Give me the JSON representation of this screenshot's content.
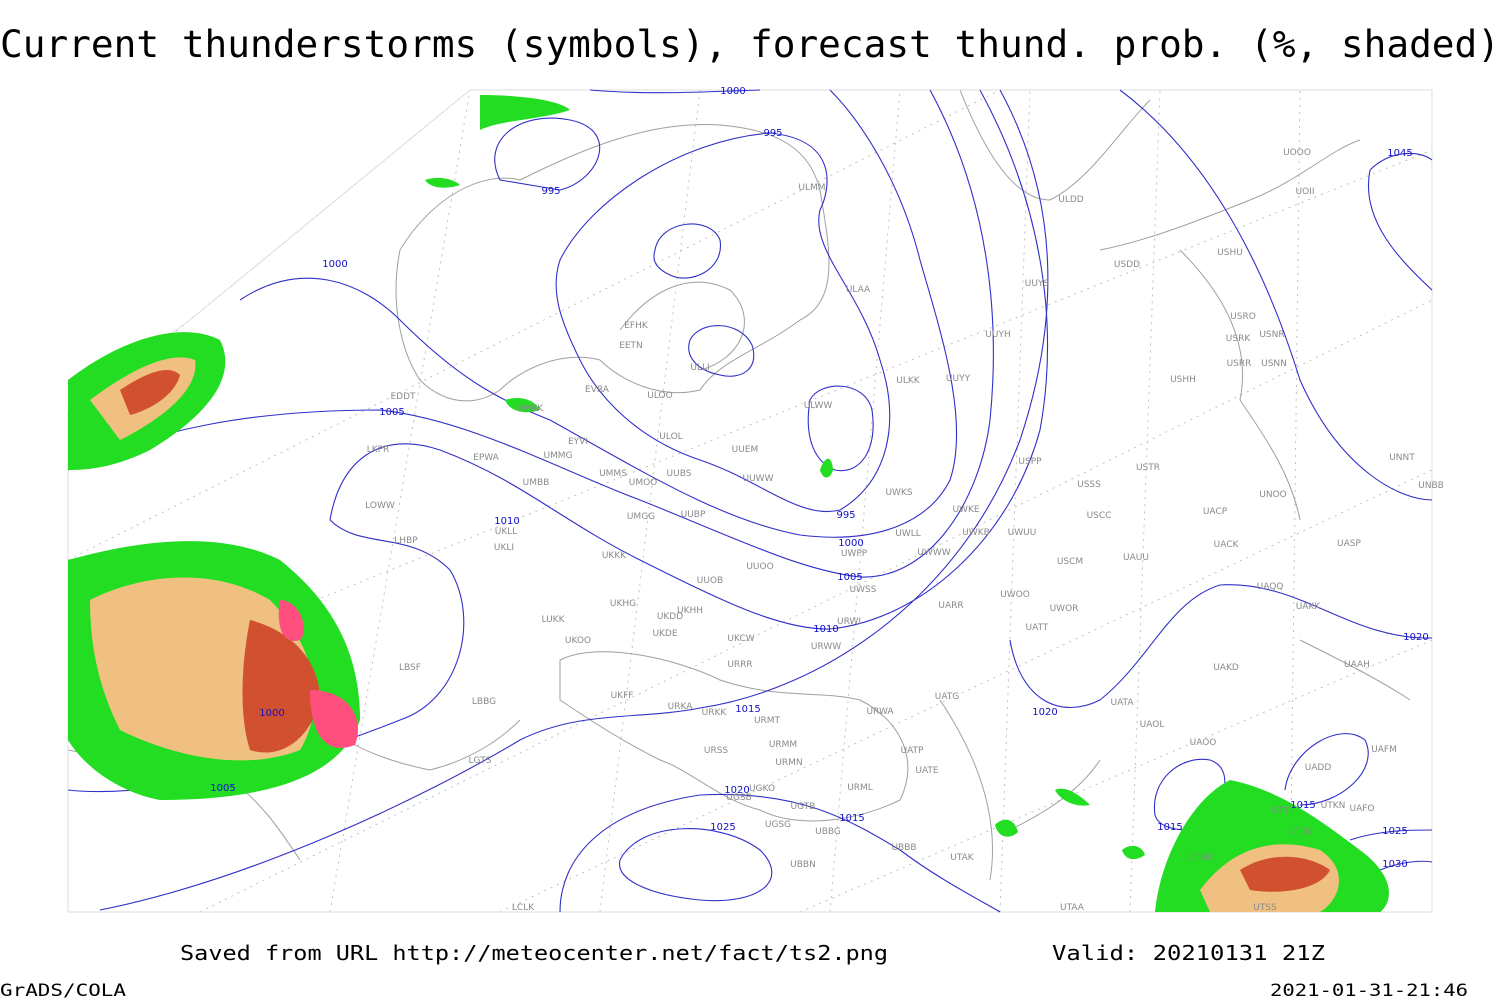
{
  "title": "Current thunderstorms (symbols), forecast thund. prob. (%, shaded)",
  "footer": {
    "source": "Saved from URL http://meteocenter.net/fact/ts2.png",
    "valid": "Valid: 20210131 21Z",
    "software": "GrADS/COLA",
    "timestamp": "2021-01-31-21:46"
  },
  "isobar_labels": [
    1000,
    995,
    995,
    1000,
    1005,
    1010,
    995,
    1000,
    1005,
    1010,
    1015,
    1020,
    1025,
    1015,
    1000,
    1005,
    1020,
    1015,
    1015,
    1020,
    1025,
    1030,
    1045
  ],
  "stations": [
    "ULMM",
    "ULDD",
    "UUYS",
    "USDD",
    "USHU",
    "UOII",
    "UOOO",
    "ULAA",
    "EFHK",
    "EETN",
    "ULLI",
    "UUYH",
    "USRO",
    "USRK",
    "USNR",
    "USRR",
    "USNN",
    "ULKK",
    "UUYY",
    "USHH",
    "EVRA",
    "ULOO",
    "UMKK",
    "ULWW",
    "EYVI",
    "ULOL",
    "UUEM",
    "EDDT",
    "LKPR",
    "EPWA",
    "UMMG",
    "UMMS",
    "UMOO",
    "UUBS",
    "UUWW",
    "UWKS",
    "USPP",
    "USSS",
    "USTR",
    "UNNT",
    "UNBB",
    "UNOO",
    "UMBB",
    "LOWW",
    "UMGG",
    "UUBP",
    "UWKE",
    "UWKB",
    "UWUU",
    "USCC",
    "UACP",
    "UASP",
    "LHBP",
    "UKLL",
    "UKLI",
    "UWPP",
    "UWLL",
    "UWWW",
    "USCM",
    "UAUU",
    "UACK",
    "UKKK",
    "UUOO",
    "UUOB",
    "UWSS",
    "UWOO",
    "UWOR",
    "UAQQ",
    "UAKK",
    "UKHG",
    "UKDD",
    "UKHH",
    "URWI",
    "UARR",
    "LUKK",
    "UKOO",
    "UKDE",
    "UKCW",
    "URWW",
    "UATT",
    "UAAH",
    "LBSF",
    "URRR",
    "UAKD",
    "UKFF",
    "URKA",
    "URKK",
    "URMT",
    "URWA",
    "UATG",
    "UATA",
    "UAOL",
    "LBBG",
    "URSS",
    "URMM",
    "URMN",
    "UATP",
    "UATE",
    "UAOO",
    "UAFM",
    "UADD",
    "LGTS",
    "UGKO",
    "UGSB",
    "UGTB",
    "URML",
    "UTTT",
    "UTKN",
    "UAFO",
    "UGSG",
    "UBBG",
    "UBBB",
    "UTAK",
    "UTDL",
    "UTSB",
    "UBBN",
    "LCLK",
    "UTAA",
    "UTSS"
  ]
}
